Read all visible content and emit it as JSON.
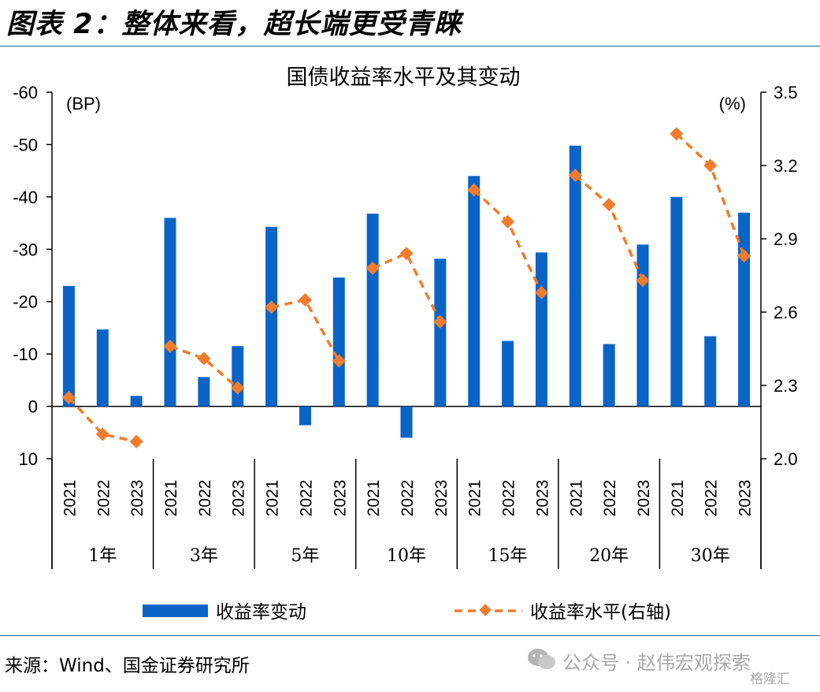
{
  "figure": {
    "title": "图表 2：整体来看，超长端更受青睐",
    "source": "来源：Wind、国金证券研究所",
    "watermark_main": "公众号 · 赵伟宏观探索",
    "watermark_sub": "格隆汇"
  },
  "colors": {
    "bar": "#0a64c8",
    "line": "#f07c2c",
    "rule": "#2b5f7a"
  },
  "chart_data": {
    "type": "bar",
    "title": "国债收益率水平及其变动",
    "left_axis": {
      "unit_label": "(BP)",
      "range": [
        10,
        -60
      ],
      "inverted": true,
      "ticks": [
        "-60",
        "-50",
        "-40",
        "-30",
        "-20",
        "-10",
        "0",
        "10"
      ],
      "tick_values": [
        -60,
        -50,
        -40,
        -30,
        -20,
        -10,
        0,
        10
      ]
    },
    "right_axis": {
      "unit_label": "(%)",
      "range": [
        2.0,
        3.5
      ],
      "ticks": [
        "3.5",
        "3.2",
        "2.9",
        "2.6",
        "2.3",
        "2.0"
      ],
      "tick_values": [
        3.5,
        3.2,
        2.9,
        2.6,
        2.3,
        2.0
      ]
    },
    "groups": [
      {
        "label": "1年",
        "years": [
          "2021",
          "2022",
          "2023"
        ]
      },
      {
        "label": "3年",
        "years": [
          "2021",
          "2022",
          "2023"
        ]
      },
      {
        "label": "5年",
        "years": [
          "2021",
          "2022",
          "2023"
        ]
      },
      {
        "label": "10年",
        "years": [
          "2021",
          "2022",
          "2023"
        ]
      },
      {
        "label": "15年",
        "years": [
          "2021",
          "2022",
          "2023"
        ]
      },
      {
        "label": "20年",
        "years": [
          "2021",
          "2022",
          "2023"
        ]
      },
      {
        "label": "30年",
        "years": [
          "2021",
          "2022",
          "2023"
        ]
      }
    ],
    "series": [
      {
        "name": "收益率变动",
        "kind": "bar",
        "axis": "left",
        "values": [
          -23,
          -14.7,
          -2,
          -36,
          -5.6,
          -11.5,
          -34.3,
          3.6,
          -24.6,
          -36.8,
          6,
          -28.2,
          -44,
          -12.5,
          -29.4,
          -49.8,
          -11.9,
          -30.9,
          -40,
          -13.4,
          -37
        ]
      },
      {
        "name": "收益率水平(右轴)",
        "kind": "line",
        "axis": "right",
        "values": [
          2.25,
          2.1,
          2.07,
          2.46,
          2.41,
          2.29,
          2.62,
          2.65,
          2.4,
          2.78,
          2.84,
          2.56,
          3.1,
          2.97,
          2.68,
          3.16,
          3.04,
          2.73,
          3.33,
          3.2,
          2.83
        ]
      }
    ],
    "legend_position": "bottom"
  }
}
